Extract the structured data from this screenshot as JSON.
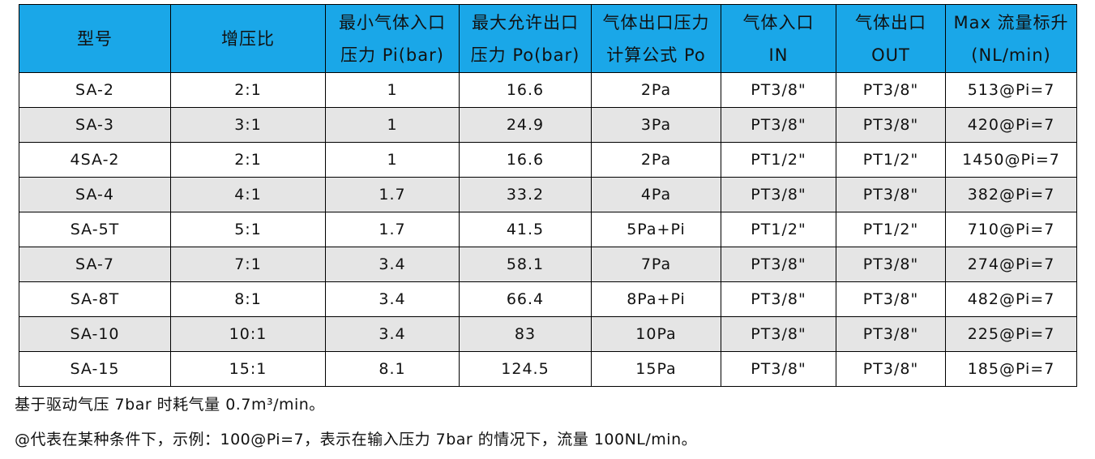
{
  "table": {
    "headers": [
      {
        "line1": "型号",
        "line2": ""
      },
      {
        "line1": "增压比",
        "line2": ""
      },
      {
        "line1": "最小气体入口",
        "line2": "压力 Pi(bar)"
      },
      {
        "line1": "最大允许出口",
        "line2": "压力 Po(bar)"
      },
      {
        "line1": "气体出口压力",
        "line2": "计算公式 Po"
      },
      {
        "line1": "气体入口",
        "line2": "IN"
      },
      {
        "line1": "气体出口",
        "line2": "OUT"
      },
      {
        "line1": "Max 流量标升",
        "line2": "(NL/min)"
      }
    ],
    "rows": [
      [
        "SA-2",
        "2:1",
        "1",
        "16.6",
        "2Pa",
        "PT3/8\"",
        "PT3/8\"",
        "513@Pi=7"
      ],
      [
        "SA-3",
        "3:1",
        "1",
        "24.9",
        "3Pa",
        "PT3/8\"",
        "PT3/8\"",
        "420@Pi=7"
      ],
      [
        "4SA-2",
        "2:1",
        "1",
        "16.6",
        "2Pa",
        "PT1/2\"",
        "PT1/2\"",
        "1450@Pi=7"
      ],
      [
        "SA-4",
        "4:1",
        "1.7",
        "33.2",
        "4Pa",
        "PT3/8\"",
        "PT3/8\"",
        "382@Pi=7"
      ],
      [
        "SA-5T",
        "5:1",
        "1.7",
        "41.5",
        "5Pa+Pi",
        "PT1/2\"",
        "PT1/2\"",
        "710@Pi=7"
      ],
      [
        "SA-7",
        "7:1",
        "3.4",
        "58.1",
        "7Pa",
        "PT3/8\"",
        "PT3/8\"",
        "274@Pi=7"
      ],
      [
        "SA-8T",
        "8:1",
        "3.4",
        "66.4",
        "8Pa+Pi",
        "PT3/8\"",
        "PT3/8\"",
        "482@Pi=7"
      ],
      [
        "SA-10",
        "10:1",
        "3.4",
        "83",
        "10Pa",
        "PT3/8\"",
        "PT3/8\"",
        "225@Pi=7"
      ],
      [
        "SA-15",
        "15:1",
        "8.1",
        "124.5",
        "15Pa",
        "PT3/8\"",
        "PT3/8\"",
        "185@Pi=7"
      ]
    ]
  },
  "notes": {
    "line1": "基于驱动气压 7bar 时耗气量 0.7m³/min。",
    "line2": "@代表在某种条件下，示例：100@Pi=7，表示在输入压力 7bar 的情况下，流量 100NL/min。"
  },
  "colors": {
    "header_bg": "#1aa7e8",
    "alt_row_bg": "#e5e5e5",
    "border": "#000000"
  }
}
